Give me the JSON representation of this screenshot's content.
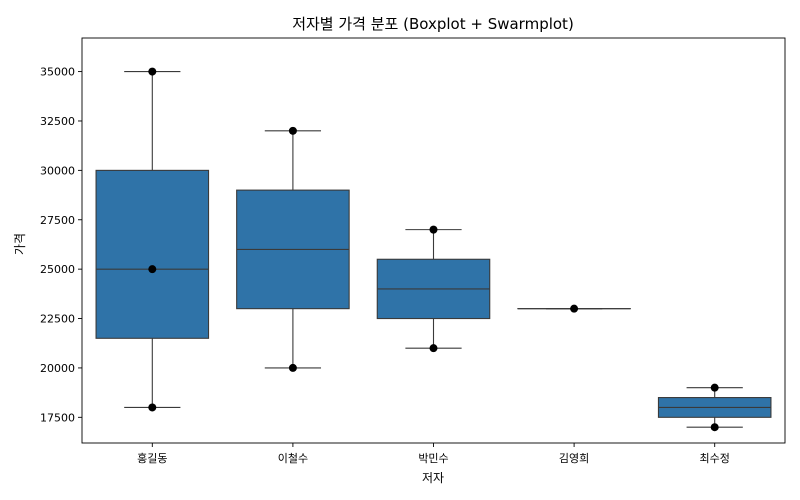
{
  "chart_data": {
    "type": "box",
    "title": "저자별 가격 분포 (Boxplot + Swarmplot)",
    "xlabel": "저자",
    "ylabel": "가격",
    "categories": [
      "홍길동",
      "이철수",
      "박민수",
      "김영희",
      "최수정"
    ],
    "ylim": [
      16200,
      36700
    ],
    "yticks": [
      17500,
      20000,
      22500,
      25000,
      27500,
      30000,
      32500,
      35000
    ],
    "boxes": [
      {
        "category": "홍길동",
        "min": 18000,
        "q1": 21500,
        "median": 25000,
        "q3": 30000,
        "max": 35000,
        "points": [
          35000,
          25000,
          18000
        ]
      },
      {
        "category": "이철수",
        "min": 20000,
        "q1": 23000,
        "median": 26000,
        "q3": 29000,
        "max": 32000,
        "points": [
          32000,
          20000
        ]
      },
      {
        "category": "박민수",
        "min": 21000,
        "q1": 22500,
        "median": 24000,
        "q3": 25500,
        "max": 27000,
        "points": [
          27000,
          21000
        ]
      },
      {
        "category": "김영희",
        "min": 23000,
        "q1": 23000,
        "median": 23000,
        "q3": 23000,
        "max": 23000,
        "points": [
          23000
        ]
      },
      {
        "category": "최수정",
        "min": 17000,
        "q1": 17500,
        "median": 18000,
        "q3": 18500,
        "max": 19000,
        "points": [
          19000,
          17000
        ]
      }
    ],
    "grid": false,
    "legend": "none"
  },
  "colors": {
    "box_fill": "#2f73a8",
    "line": "#3a3a3a",
    "point": "#000000",
    "axis": "#000000"
  }
}
